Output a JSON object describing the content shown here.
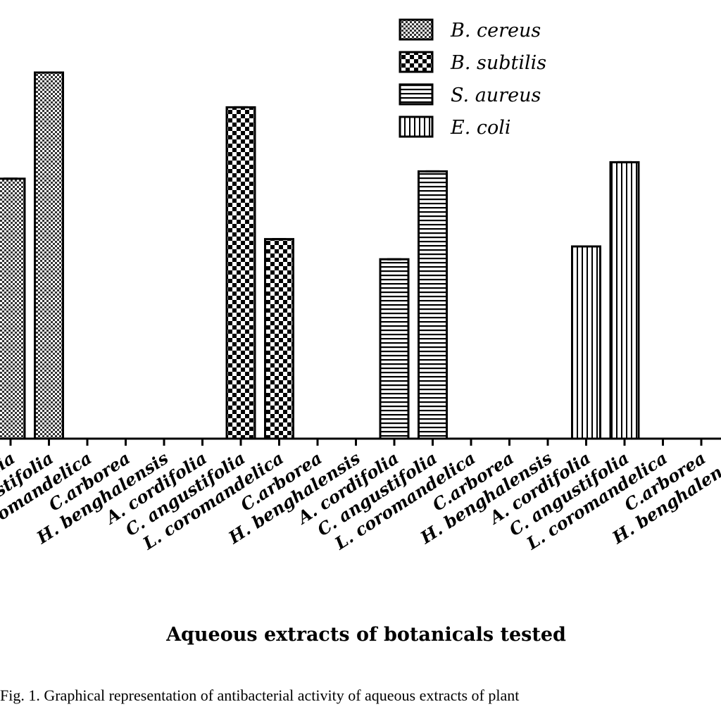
{
  "chart_data": {
    "type": "bar",
    "xlabel": "Aqueous extracts of botanicals tested",
    "ylabel": "",
    "title": "",
    "ylim": [
      0,
      20
    ],
    "legend_position": "top-right",
    "categories": [
      "A. cordifolia",
      "C. angustifolia",
      "L. coromandelica",
      "C.arborea",
      "H. benghalensis"
    ],
    "tick_labels": [
      "A. cordifolia",
      "C. angustifolia",
      "L. coromandelica",
      "C.arborea",
      "H. benghalensis",
      "A. cordifolia",
      "C. angustifolia",
      "L. coromandelica",
      "C.arborea",
      "H. benghalensis",
      "A. cordifolia",
      "C. angustifolia",
      "L. coromandelica",
      "C.arborea",
      "H. benghalensis",
      "A. cordifolia",
      "C. angustifolia",
      "L. coromandelica",
      "C.arborea",
      "H. benghalensis"
    ],
    "series": [
      {
        "name": "B. cereus",
        "values": [
          14.2,
          20.0,
          0,
          0,
          0
        ],
        "pattern": "fine-check"
      },
      {
        "name": "B. subtilis",
        "values": [
          0,
          18.1,
          10.9,
          0,
          0
        ],
        "pattern": "checker"
      },
      {
        "name": "S. aureus",
        "values": [
          9.8,
          14.6,
          0,
          0,
          0
        ],
        "pattern": "horizontal"
      },
      {
        "name": "E. coli",
        "values": [
          10.5,
          15.1,
          0,
          0,
          0
        ],
        "pattern": "vertical"
      }
    ]
  },
  "caption": "Fig. 1. Graphical representation of antibacterial activity of aqueous extracts of plant"
}
